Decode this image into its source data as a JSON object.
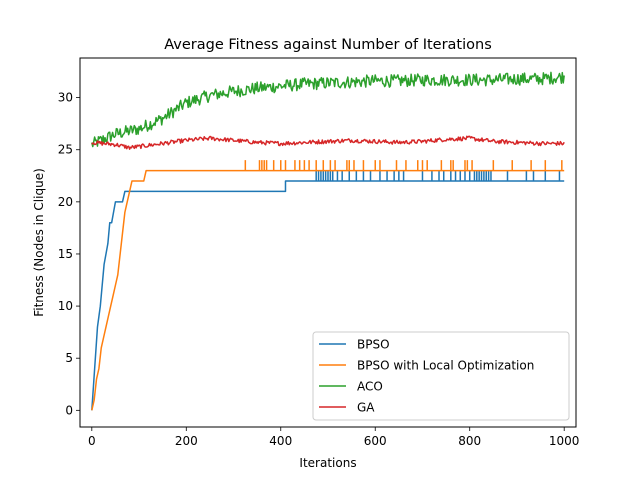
{
  "chart_data": {
    "type": "line",
    "title": "Average Fitness against Number of Iterations",
    "xlabel": "Iterations",
    "ylabel": "Fitness (Nodes in Clique)",
    "xlim": [
      -25,
      1025
    ],
    "ylim": [
      -1.6,
      33.8
    ],
    "xticks": [
      0,
      200,
      400,
      600,
      800,
      1000
    ],
    "yticks": [
      0,
      5,
      10,
      15,
      20,
      25,
      30
    ],
    "grid": false,
    "legend_position": "lower-right",
    "series": [
      {
        "name": "BPSO",
        "color": "#1f77b4",
        "points": [
          [
            0,
            0
          ],
          [
            3,
            2
          ],
          [
            6,
            4
          ],
          [
            9,
            6
          ],
          [
            12,
            8
          ],
          [
            15,
            9
          ],
          [
            18,
            10
          ],
          [
            22,
            12
          ],
          [
            26,
            14
          ],
          [
            30,
            15
          ],
          [
            34,
            16
          ],
          [
            38,
            18
          ],
          [
            42,
            18
          ],
          [
            46,
            19
          ],
          [
            50,
            20
          ],
          [
            55,
            20
          ],
          [
            60,
            20
          ],
          [
            65,
            20
          ],
          [
            70,
            21
          ],
          [
            80,
            21
          ],
          [
            100,
            21
          ],
          [
            150,
            21
          ],
          [
            200,
            21
          ],
          [
            300,
            21
          ],
          [
            410,
            21
          ],
          [
            410,
            22
          ],
          [
            470,
            22
          ],
          [
            1000,
            22
          ]
        ],
        "spikes_to": 23,
        "spikes_at": [
          475,
          480,
          485,
          490,
          495,
          500,
          505,
          510,
          520,
          530,
          545,
          560,
          575,
          590,
          610,
          625,
          640,
          650,
          660,
          700,
          720,
          735,
          745,
          760,
          770,
          780,
          790,
          800,
          810,
          815,
          820,
          825,
          830,
          835,
          840,
          845,
          880,
          920,
          935,
          960,
          990
        ]
      },
      {
        "name": "BPSO with Local Optimization",
        "color": "#ff7f0e",
        "points": [
          [
            0,
            0
          ],
          [
            5,
            1
          ],
          [
            10,
            3
          ],
          [
            15,
            4
          ],
          [
            20,
            6
          ],
          [
            25,
            7
          ],
          [
            30,
            8
          ],
          [
            35,
            9
          ],
          [
            40,
            10
          ],
          [
            45,
            11
          ],
          [
            50,
            12
          ],
          [
            55,
            13
          ],
          [
            60,
            15
          ],
          [
            65,
            17
          ],
          [
            70,
            19
          ],
          [
            75,
            20
          ],
          [
            80,
            21
          ],
          [
            85,
            22
          ],
          [
            90,
            22
          ],
          [
            95,
            22
          ],
          [
            100,
            22
          ],
          [
            105,
            22
          ],
          [
            110,
            22
          ],
          [
            115,
            23
          ],
          [
            200,
            23
          ],
          [
            1000,
            23
          ]
        ],
        "spikes_to": 24,
        "spikes_at": [
          325,
          355,
          360,
          365,
          370,
          385,
          400,
          410,
          430,
          440,
          450,
          460,
          475,
          490,
          505,
          515,
          540,
          545,
          555,
          575,
          600,
          610,
          645,
          665,
          690,
          700,
          710,
          740,
          760,
          765,
          790,
          795,
          805,
          850,
          890,
          930,
          960,
          995
        ]
      },
      {
        "name": "ACO",
        "color": "#2ca02c",
        "anchors": [
          [
            0,
            25.5
          ],
          [
            50,
            26.5
          ],
          [
            100,
            27
          ],
          [
            150,
            28
          ],
          [
            200,
            29.5
          ],
          [
            250,
            30.2
          ],
          [
            300,
            30.6
          ],
          [
            350,
            30.9
          ],
          [
            400,
            31.1
          ],
          [
            450,
            31.3
          ],
          [
            500,
            31.4
          ],
          [
            550,
            31.5
          ],
          [
            600,
            31.6
          ],
          [
            650,
            31.6
          ],
          [
            700,
            31.7
          ],
          [
            750,
            31.7
          ],
          [
            800,
            31.7
          ],
          [
            850,
            31.7
          ],
          [
            900,
            31.8
          ],
          [
            950,
            31.8
          ],
          [
            1000,
            32
          ]
        ],
        "noise_amplitude": 0.6
      },
      {
        "name": "GA",
        "color": "#d62728",
        "anchors": [
          [
            0,
            25.7
          ],
          [
            50,
            25.5
          ],
          [
            80,
            25.2
          ],
          [
            100,
            25.3
          ],
          [
            150,
            25.6
          ],
          [
            200,
            25.9
          ],
          [
            250,
            26.1
          ],
          [
            300,
            25.9
          ],
          [
            350,
            25.7
          ],
          [
            400,
            25.6
          ],
          [
            450,
            25.7
          ],
          [
            500,
            25.8
          ],
          [
            550,
            25.9
          ],
          [
            600,
            25.8
          ],
          [
            650,
            25.7
          ],
          [
            700,
            25.8
          ],
          [
            750,
            26
          ],
          [
            800,
            26.1
          ],
          [
            850,
            25.8
          ],
          [
            900,
            25.7
          ],
          [
            950,
            25.6
          ],
          [
            1000,
            25.6
          ]
        ],
        "noise_amplitude": 0.2
      }
    ]
  }
}
